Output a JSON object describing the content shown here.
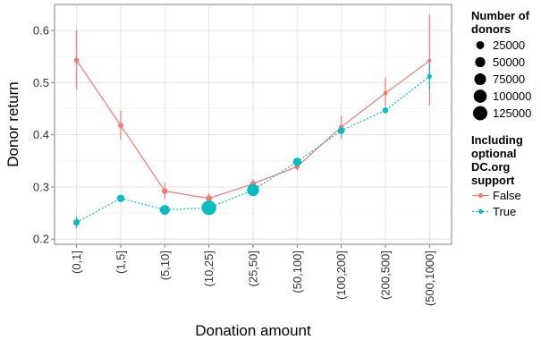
{
  "chart_data": {
    "type": "line",
    "xlabel": "Donation amount",
    "ylabel": "Donor return",
    "categories": [
      "(0,1]",
      "(1,5]",
      "(5,10]",
      "(10,25]",
      "(25,50]",
      "(50,100]",
      "(100,200]",
      "(200,500]",
      "(500,1000]"
    ],
    "ylim": [
      0.19,
      0.65
    ],
    "yticks": [
      0.2,
      0.3,
      0.4,
      0.5,
      0.6
    ],
    "ytick_labels": [
      "0.2",
      "0.3",
      "0.4",
      "0.5",
      "0.6"
    ],
    "grid": true,
    "series": [
      {
        "name": "False",
        "color": "#F8766D",
        "linestyle": "solid",
        "values": [
          0.543,
          0.418,
          0.292,
          0.278,
          0.306,
          0.339,
          0.415,
          0.48,
          0.542
        ],
        "err_low": [
          0.487,
          0.39,
          0.277,
          0.268,
          0.297,
          0.331,
          0.392,
          0.455,
          0.456
        ],
        "err_high": [
          0.6,
          0.446,
          0.308,
          0.288,
          0.315,
          0.347,
          0.437,
          0.51,
          0.63
        ],
        "donors": [
          4000,
          5000,
          8000,
          10000,
          8000,
          5000,
          3000,
          2000,
          1000
        ]
      },
      {
        "name": "True",
        "color": "#00BFC4",
        "linestyle": "dotted",
        "values": [
          0.232,
          0.278,
          0.256,
          0.26,
          0.294,
          0.348,
          0.408,
          0.447,
          0.512
        ],
        "err_low": [
          0.221,
          0.274,
          0.252,
          0.256,
          0.29,
          0.344,
          0.402,
          0.441,
          0.487
        ],
        "err_high": [
          0.243,
          0.282,
          0.26,
          0.264,
          0.298,
          0.352,
          0.414,
          0.453,
          0.537
        ],
        "donors": [
          12000,
          20000,
          45000,
          130000,
          80000,
          30000,
          15000,
          8000,
          3000
        ]
      }
    ],
    "legend": {
      "placement": "right",
      "size_title": [
        "Number of",
        "donors"
      ],
      "size_entries": [
        {
          "label": "25000",
          "value": 25000
        },
        {
          "label": "50000",
          "value": 50000
        },
        {
          "label": "75000",
          "value": 75000
        },
        {
          "label": "100000",
          "value": 100000
        },
        {
          "label": "125000",
          "value": 125000
        }
      ],
      "color_title": [
        "Including",
        "optional",
        "DC.org",
        "support"
      ],
      "color_entries": [
        {
          "label": "False",
          "color": "#F8766D"
        },
        {
          "label": "True",
          "color": "#00BFC4"
        }
      ]
    }
  }
}
